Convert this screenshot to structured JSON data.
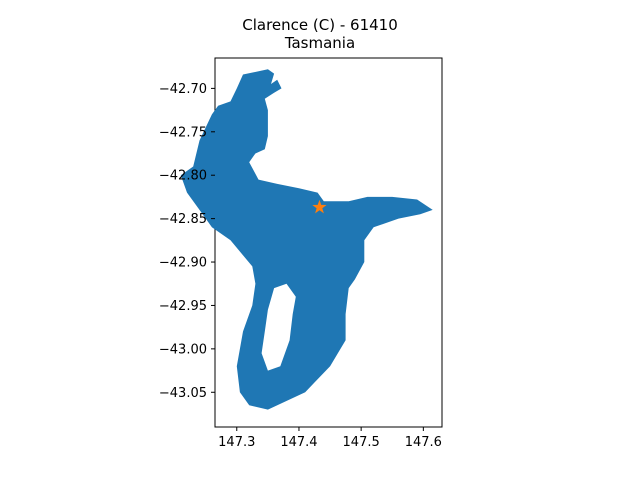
{
  "title_line1": "Clarence (C) - 61410",
  "title_line2": "Tasmania",
  "map": {
    "fill_color": "#1f77b4",
    "marker_color": "#ff7f0e",
    "marker_shape": "star",
    "marker_lon": 147.433,
    "marker_lat": -42.837,
    "region_outline_lonlat": [
      [
        147.3,
        -42.7
      ],
      [
        147.31,
        -42.684
      ],
      [
        147.35,
        -42.678
      ],
      [
        147.36,
        -42.683
      ],
      [
        147.355,
        -42.695
      ],
      [
        147.365,
        -42.69
      ],
      [
        147.372,
        -42.7
      ],
      [
        147.36,
        -42.705
      ],
      [
        147.345,
        -42.712
      ],
      [
        147.35,
        -42.725
      ],
      [
        147.35,
        -42.755
      ],
      [
        147.345,
        -42.77
      ],
      [
        147.33,
        -42.775
      ],
      [
        147.32,
        -42.785
      ],
      [
        147.335,
        -42.805
      ],
      [
        147.365,
        -42.81
      ],
      [
        147.4,
        -42.815
      ],
      [
        147.43,
        -42.82
      ],
      [
        147.44,
        -42.83
      ],
      [
        147.48,
        -42.83
      ],
      [
        147.51,
        -42.825
      ],
      [
        147.55,
        -42.825
      ],
      [
        147.59,
        -42.828
      ],
      [
        147.615,
        -42.84
      ],
      [
        147.595,
        -42.845
      ],
      [
        147.56,
        -42.85
      ],
      [
        147.52,
        -42.86
      ],
      [
        147.505,
        -42.875
      ],
      [
        147.505,
        -42.9
      ],
      [
        147.49,
        -42.92
      ],
      [
        147.48,
        -42.93
      ],
      [
        147.475,
        -42.96
      ],
      [
        147.475,
        -42.99
      ],
      [
        147.45,
        -43.02
      ],
      [
        147.43,
        -43.035
      ],
      [
        147.41,
        -43.05
      ],
      [
        147.35,
        -43.07
      ],
      [
        147.32,
        -43.065
      ],
      [
        147.305,
        -43.05
      ],
      [
        147.3,
        -43.02
      ],
      [
        147.31,
        -42.98
      ],
      [
        147.325,
        -42.95
      ],
      [
        147.33,
        -42.925
      ],
      [
        147.325,
        -42.905
      ],
      [
        147.29,
        -42.875
      ],
      [
        147.26,
        -42.86
      ],
      [
        147.24,
        -42.84
      ],
      [
        147.22,
        -42.82
      ],
      [
        147.21,
        -42.8
      ],
      [
        147.23,
        -42.79
      ],
      [
        147.24,
        -42.76
      ],
      [
        147.26,
        -42.73
      ],
      [
        147.27,
        -42.72
      ],
      [
        147.29,
        -42.715
      ]
    ],
    "water_outline_lonlat": [
      [
        147.36,
        -42.93
      ],
      [
        147.38,
        -42.925
      ],
      [
        147.395,
        -42.94
      ],
      [
        147.39,
        -42.96
      ],
      [
        147.385,
        -42.99
      ],
      [
        147.37,
        -43.02
      ],
      [
        147.35,
        -43.025
      ],
      [
        147.34,
        -43.005
      ],
      [
        147.345,
        -42.98
      ],
      [
        147.35,
        -42.955
      ]
    ]
  },
  "chart_data": {
    "type": "map",
    "title": "Clarence (C) - 61410\nTasmania",
    "xlim": [
      147.265,
      147.63
    ],
    "ylim": [
      -43.09,
      -42.665
    ],
    "x_ticks": [
      147.3,
      147.4,
      147.5,
      147.6
    ],
    "x_tick_labels": [
      "147.3",
      "147.4",
      "147.5",
      "147.6"
    ],
    "y_ticks": [
      -42.7,
      -42.75,
      -42.8,
      -42.85,
      -42.9,
      -42.95,
      -43.0,
      -43.05
    ],
    "y_tick_labels": [
      "−42.70",
      "−42.75",
      "−42.80",
      "−42.85",
      "−42.90",
      "−42.95",
      "−43.00",
      "−43.05"
    ]
  }
}
